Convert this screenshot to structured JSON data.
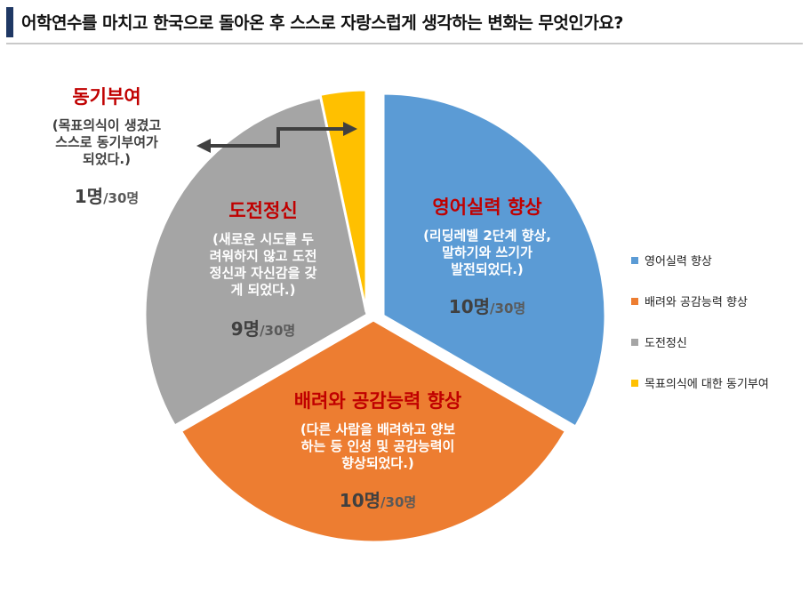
{
  "title": "어학연수를 마치고 한국으로 돌아온 후 스스로 자랑스럽게 생각하는 변화는 무엇인가요?",
  "chart_data": {
    "type": "pie",
    "total_suffix": "/30명",
    "slices": [
      {
        "key": "english",
        "label": "영어실력 향상",
        "legend": "영어실력 향상",
        "value": 10,
        "count_text": "10명",
        "color": "#5b9bd5",
        "desc": [
          "(리딩레벨 2단계 향상,",
          "말하기와 쓰기가",
          "발전되었다.)"
        ]
      },
      {
        "key": "care",
        "label": "배려와 공감능력 향상",
        "legend": "배려와 공감능력 향상",
        "value": 10,
        "count_text": "10명",
        "color": "#ed7d31",
        "desc": [
          "(다른 사람을 배려하고 양보",
          "하는 등 인성 및 공감능력이",
          "향상되었다.)"
        ]
      },
      {
        "key": "challenge",
        "label": "도전정신",
        "legend": "도전정신",
        "value": 9,
        "count_text": "9명",
        "color": "#a5a5a5",
        "desc": [
          "(새로운 시도를 두",
          "려워하지 않고 도전",
          "정신과 자신감을 갖",
          "게 되었다.)"
        ]
      },
      {
        "key": "motive",
        "label": "동기부여",
        "legend": "목표의식에 대한 동기부여",
        "value": 1,
        "count_text": "1명",
        "color": "#ffc000",
        "desc": [
          "(목표의식이 생겼고",
          "스스로 동기부여가",
          "되었다.)"
        ]
      }
    ],
    "legend_position": "right"
  }
}
